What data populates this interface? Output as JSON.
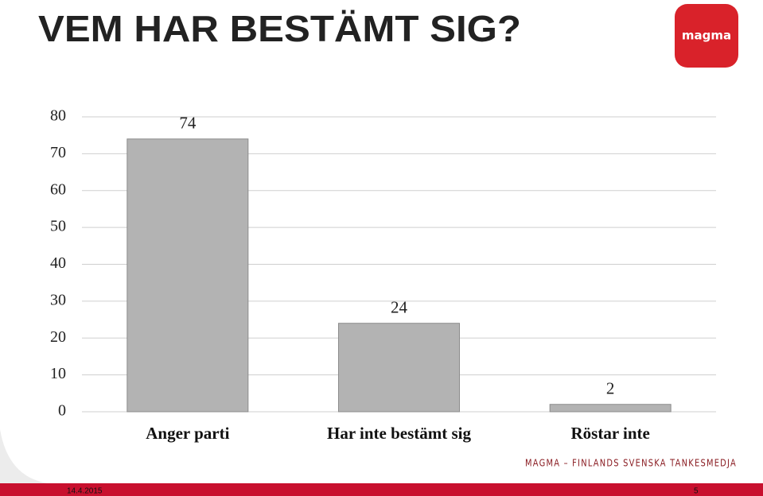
{
  "chart_data": {
    "type": "bar",
    "title": "VEM HAR BESTÄMT SIG?",
    "categories": [
      "Anger parti",
      "Har inte bestämt sig",
      "Röstar inte"
    ],
    "values": [
      74,
      24,
      2
    ],
    "color": "#b3b3b3",
    "ylim": [
      0,
      80
    ],
    "yticks": [
      0,
      10,
      20,
      30,
      40,
      50,
      60,
      70,
      80
    ],
    "grid": true,
    "data_labels": true
  },
  "slide": {
    "logo": "magma",
    "footer": "MAGMA – FINLANDS SVENSKA TANKESMEDJA",
    "date": "14.4.2015",
    "page": "5"
  }
}
